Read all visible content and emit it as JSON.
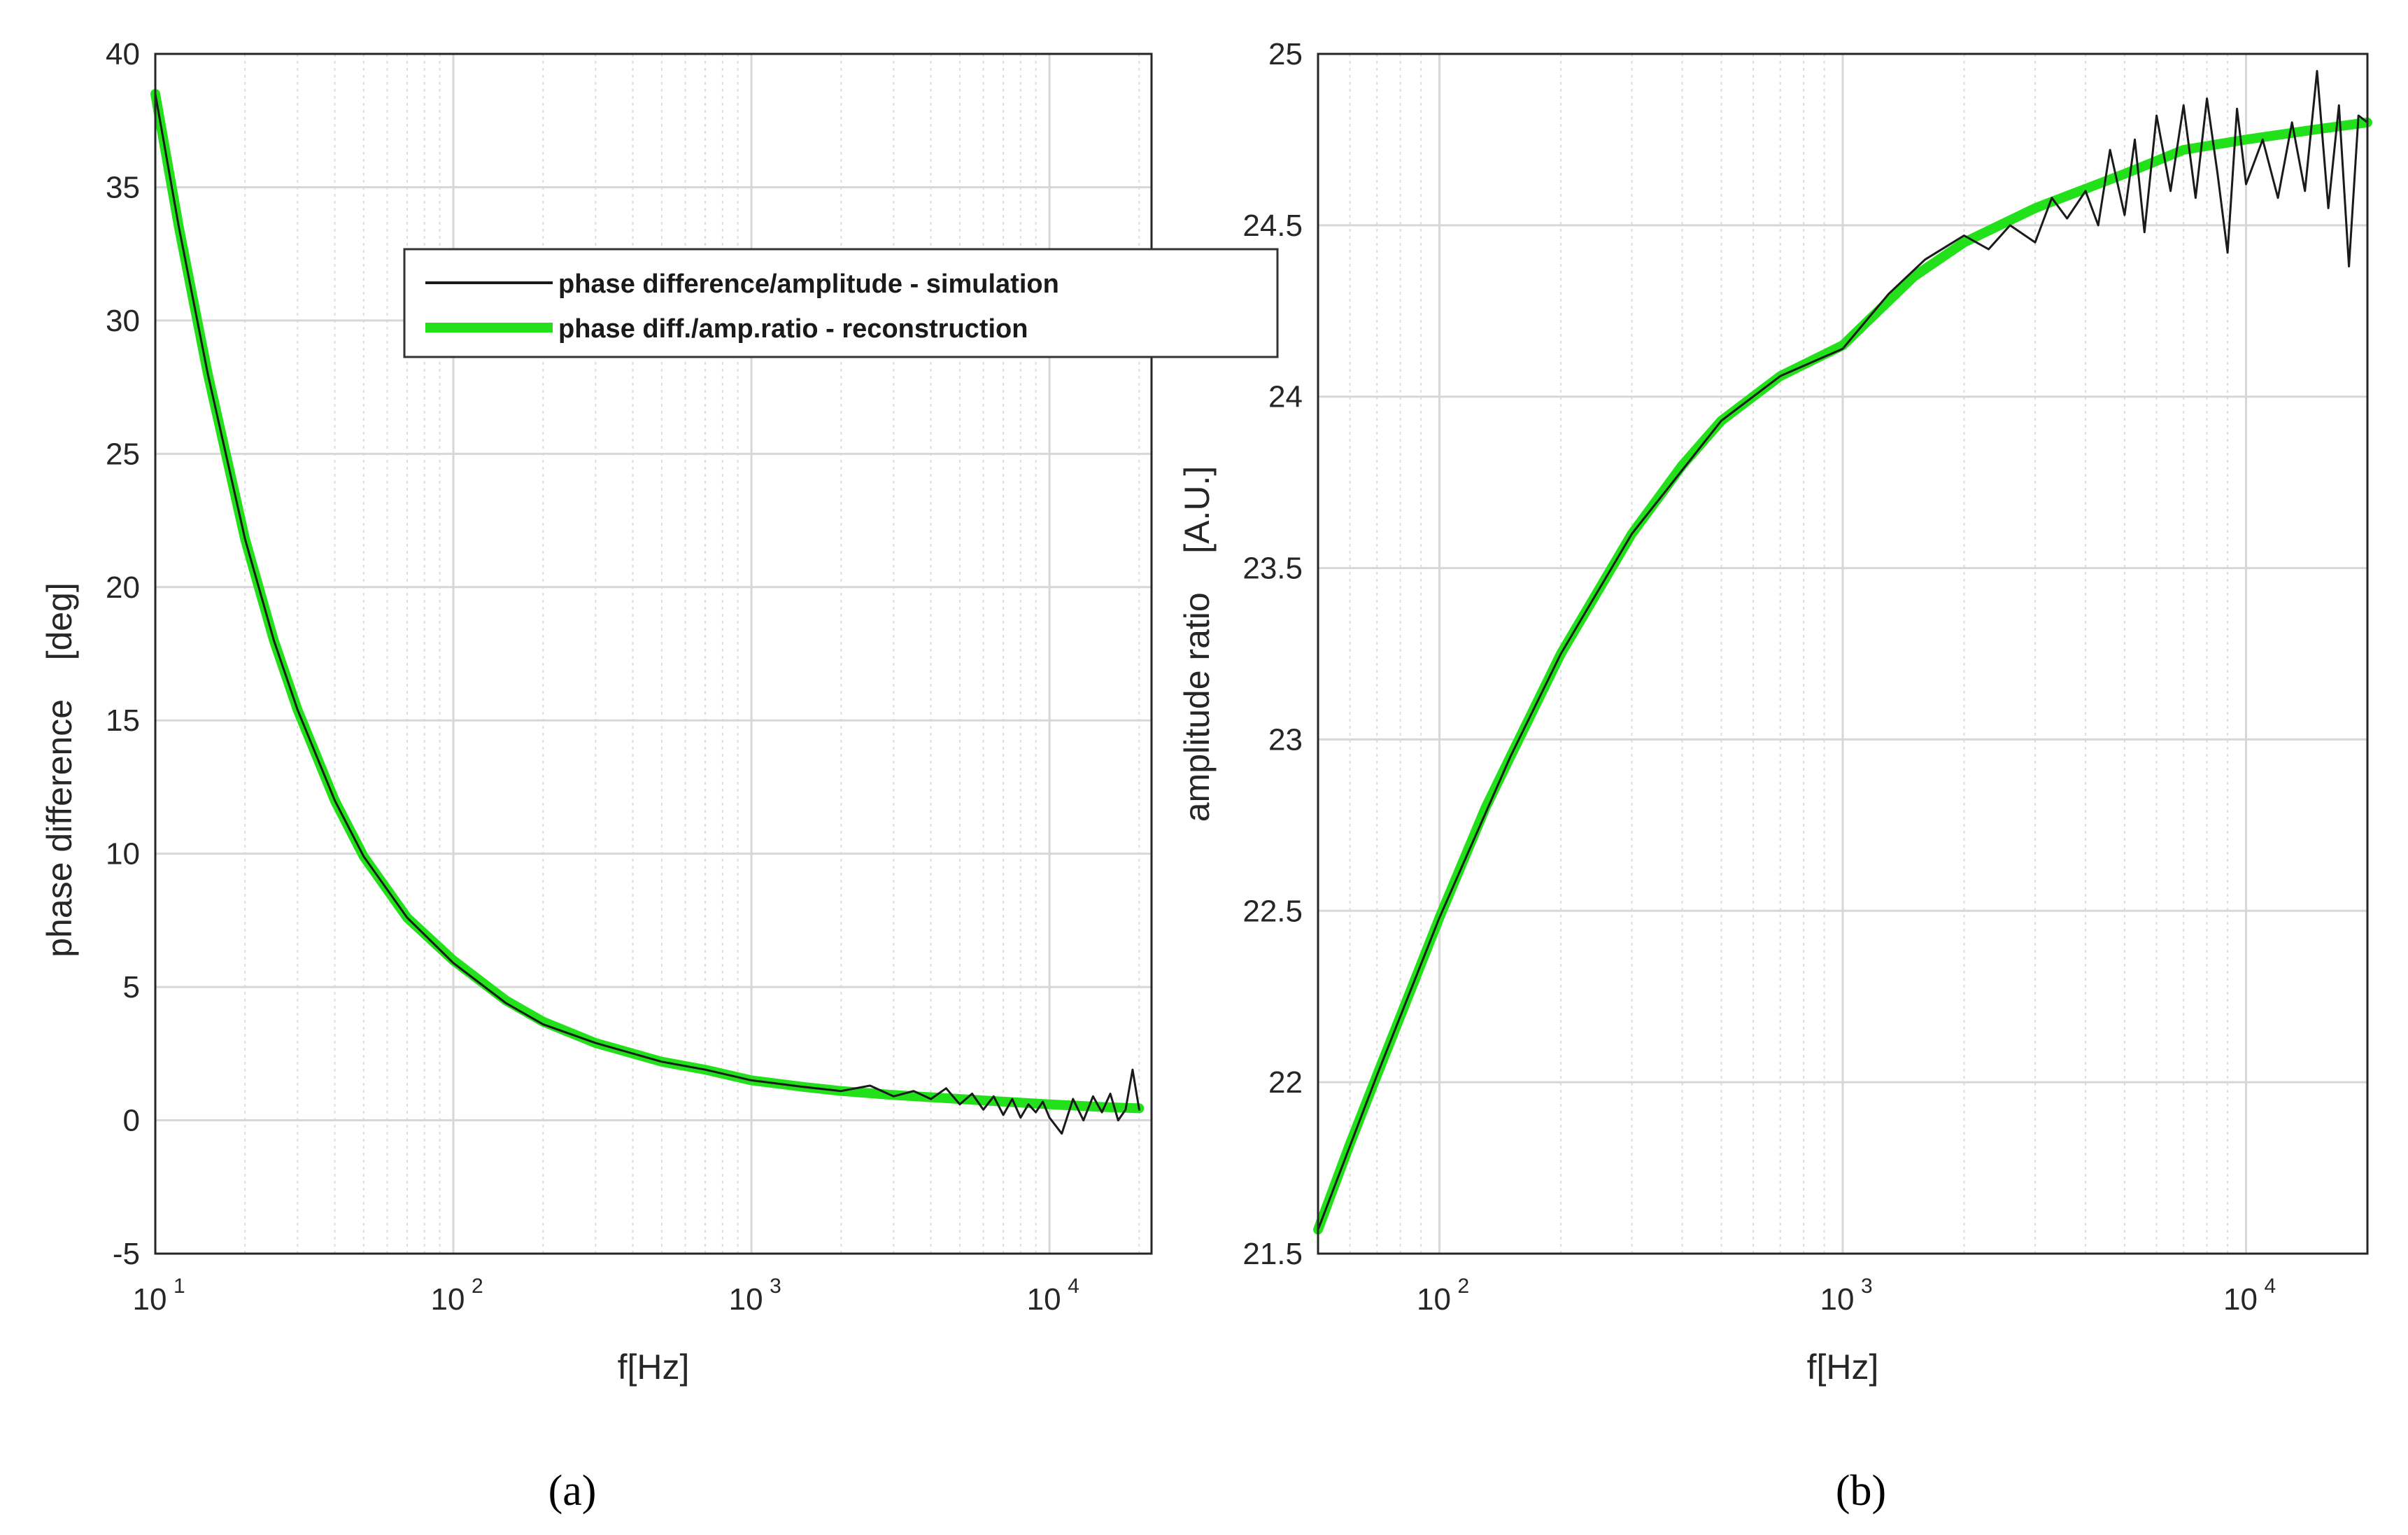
{
  "colors": {
    "simulation": "#1a1a1a",
    "reconstruction": "#22e11a",
    "grid_major": "#d7d7d7",
    "grid_minor": "#dcdcdc",
    "axes": "#262626"
  },
  "legend": {
    "entries": [
      {
        "label": "phase difference/amplitude - simulation",
        "series": "simulation"
      },
      {
        "label": "phase diff./amp.ratio - reconstruction",
        "series": "reconstruction"
      }
    ]
  },
  "chart_data": [
    {
      "panel_label": "(a)",
      "type": "line",
      "xlabel": "f[Hz]",
      "ylabel": "phase difference    [deg]",
      "xscale": "log",
      "xlim": [
        10,
        22000
      ],
      "ylim": [
        -5,
        40
      ],
      "xticks": [
        10,
        100,
        1000,
        10000
      ],
      "yticks": [
        -5,
        0,
        5,
        10,
        15,
        20,
        25,
        30,
        35,
        40
      ],
      "grid": true,
      "legend": "top-right",
      "series": [
        {
          "name": "phase difference/amplitude - simulation",
          "x": [
            10,
            12,
            15,
            20,
            25,
            30,
            40,
            50,
            70,
            100,
            150,
            200,
            300,
            500,
            700,
            1000,
            1500,
            2000,
            2500,
            3000,
            3500,
            4000,
            4500,
            5000,
            5500,
            6000,
            6500,
            7000,
            7500,
            8000,
            8500,
            9000,
            9500,
            10000,
            11000,
            12000,
            13000,
            14000,
            15000,
            16000,
            17000,
            18000,
            19000,
            20000
          ],
          "y": [
            38.5,
            33.5,
            28.0,
            21.8,
            18.0,
            15.4,
            12.0,
            9.9,
            7.6,
            5.9,
            4.4,
            3.6,
            2.9,
            2.2,
            1.9,
            1.5,
            1.25,
            1.1,
            1.3,
            0.9,
            1.1,
            0.8,
            1.2,
            0.6,
            1.0,
            0.4,
            0.9,
            0.2,
            0.8,
            0.1,
            0.6,
            0.3,
            0.7,
            0.1,
            -0.5,
            0.8,
            0.0,
            0.9,
            0.3,
            1.0,
            0.0,
            0.4,
            1.9,
            0.4
          ]
        },
        {
          "name": "phase diff./amp.ratio - reconstruction",
          "x": [
            10,
            12,
            15,
            20,
            25,
            30,
            40,
            50,
            70,
            100,
            150,
            200,
            300,
            500,
            700,
            1000,
            1500,
            2000,
            3000,
            5000,
            7000,
            10000,
            15000,
            20000
          ],
          "y": [
            38.5,
            33.5,
            28.0,
            21.8,
            18.0,
            15.4,
            12.0,
            9.9,
            7.6,
            6.0,
            4.5,
            3.7,
            2.9,
            2.2,
            1.9,
            1.5,
            1.25,
            1.1,
            0.95,
            0.8,
            0.7,
            0.6,
            0.5,
            0.45
          ]
        }
      ]
    },
    {
      "panel_label": "(b)",
      "type": "line",
      "xlabel": "f[Hz]",
      "ylabel": "amplitude ratio    [A.U.]",
      "xscale": "log",
      "xlim": [
        50,
        20000
      ],
      "ylim": [
        21.5,
        25
      ],
      "xticks": [
        100,
        1000,
        10000
      ],
      "yticks": [
        21.5,
        22,
        22.5,
        23,
        23.5,
        24,
        24.5,
        25
      ],
      "grid": true,
      "series": [
        {
          "name": "phase difference/amplitude - simulation",
          "x": [
            50,
            70,
            100,
            150,
            200,
            300,
            500,
            700,
            1000,
            1300,
            1600,
            2000,
            2300,
            2600,
            3000,
            3300,
            3600,
            4000,
            4300,
            4600,
            5000,
            5300,
            5600,
            6000,
            6500,
            7000,
            7500,
            8000,
            8500,
            9000,
            9500,
            10000,
            11000,
            12000,
            13000,
            14000,
            15000,
            16000,
            17000,
            18000,
            19000,
            20000
          ],
          "y": [
            21.57,
            22.02,
            22.48,
            22.95,
            23.25,
            23.6,
            23.93,
            24.06,
            24.14,
            24.3,
            24.4,
            24.47,
            24.43,
            24.5,
            24.45,
            24.58,
            24.52,
            24.6,
            24.5,
            24.72,
            24.53,
            24.75,
            24.48,
            24.82,
            24.6,
            24.85,
            24.58,
            24.87,
            24.65,
            24.42,
            24.84,
            24.62,
            24.75,
            24.58,
            24.8,
            24.6,
            24.95,
            24.55,
            24.85,
            24.38,
            24.82,
            24.8
          ]
        },
        {
          "name": "phase diff./amp.ratio - reconstruction",
          "x": [
            50,
            60,
            70,
            85,
            100,
            130,
            150,
            200,
            300,
            400,
            500,
            700,
            1000,
            1500,
            2000,
            3000,
            5000,
            7000,
            10000,
            15000,
            20000
          ],
          "y": [
            21.57,
            21.82,
            22.02,
            22.27,
            22.48,
            22.8,
            22.95,
            23.25,
            23.6,
            23.8,
            23.93,
            24.06,
            24.15,
            24.35,
            24.45,
            24.55,
            24.65,
            24.72,
            24.75,
            24.78,
            24.8
          ]
        }
      ]
    }
  ]
}
